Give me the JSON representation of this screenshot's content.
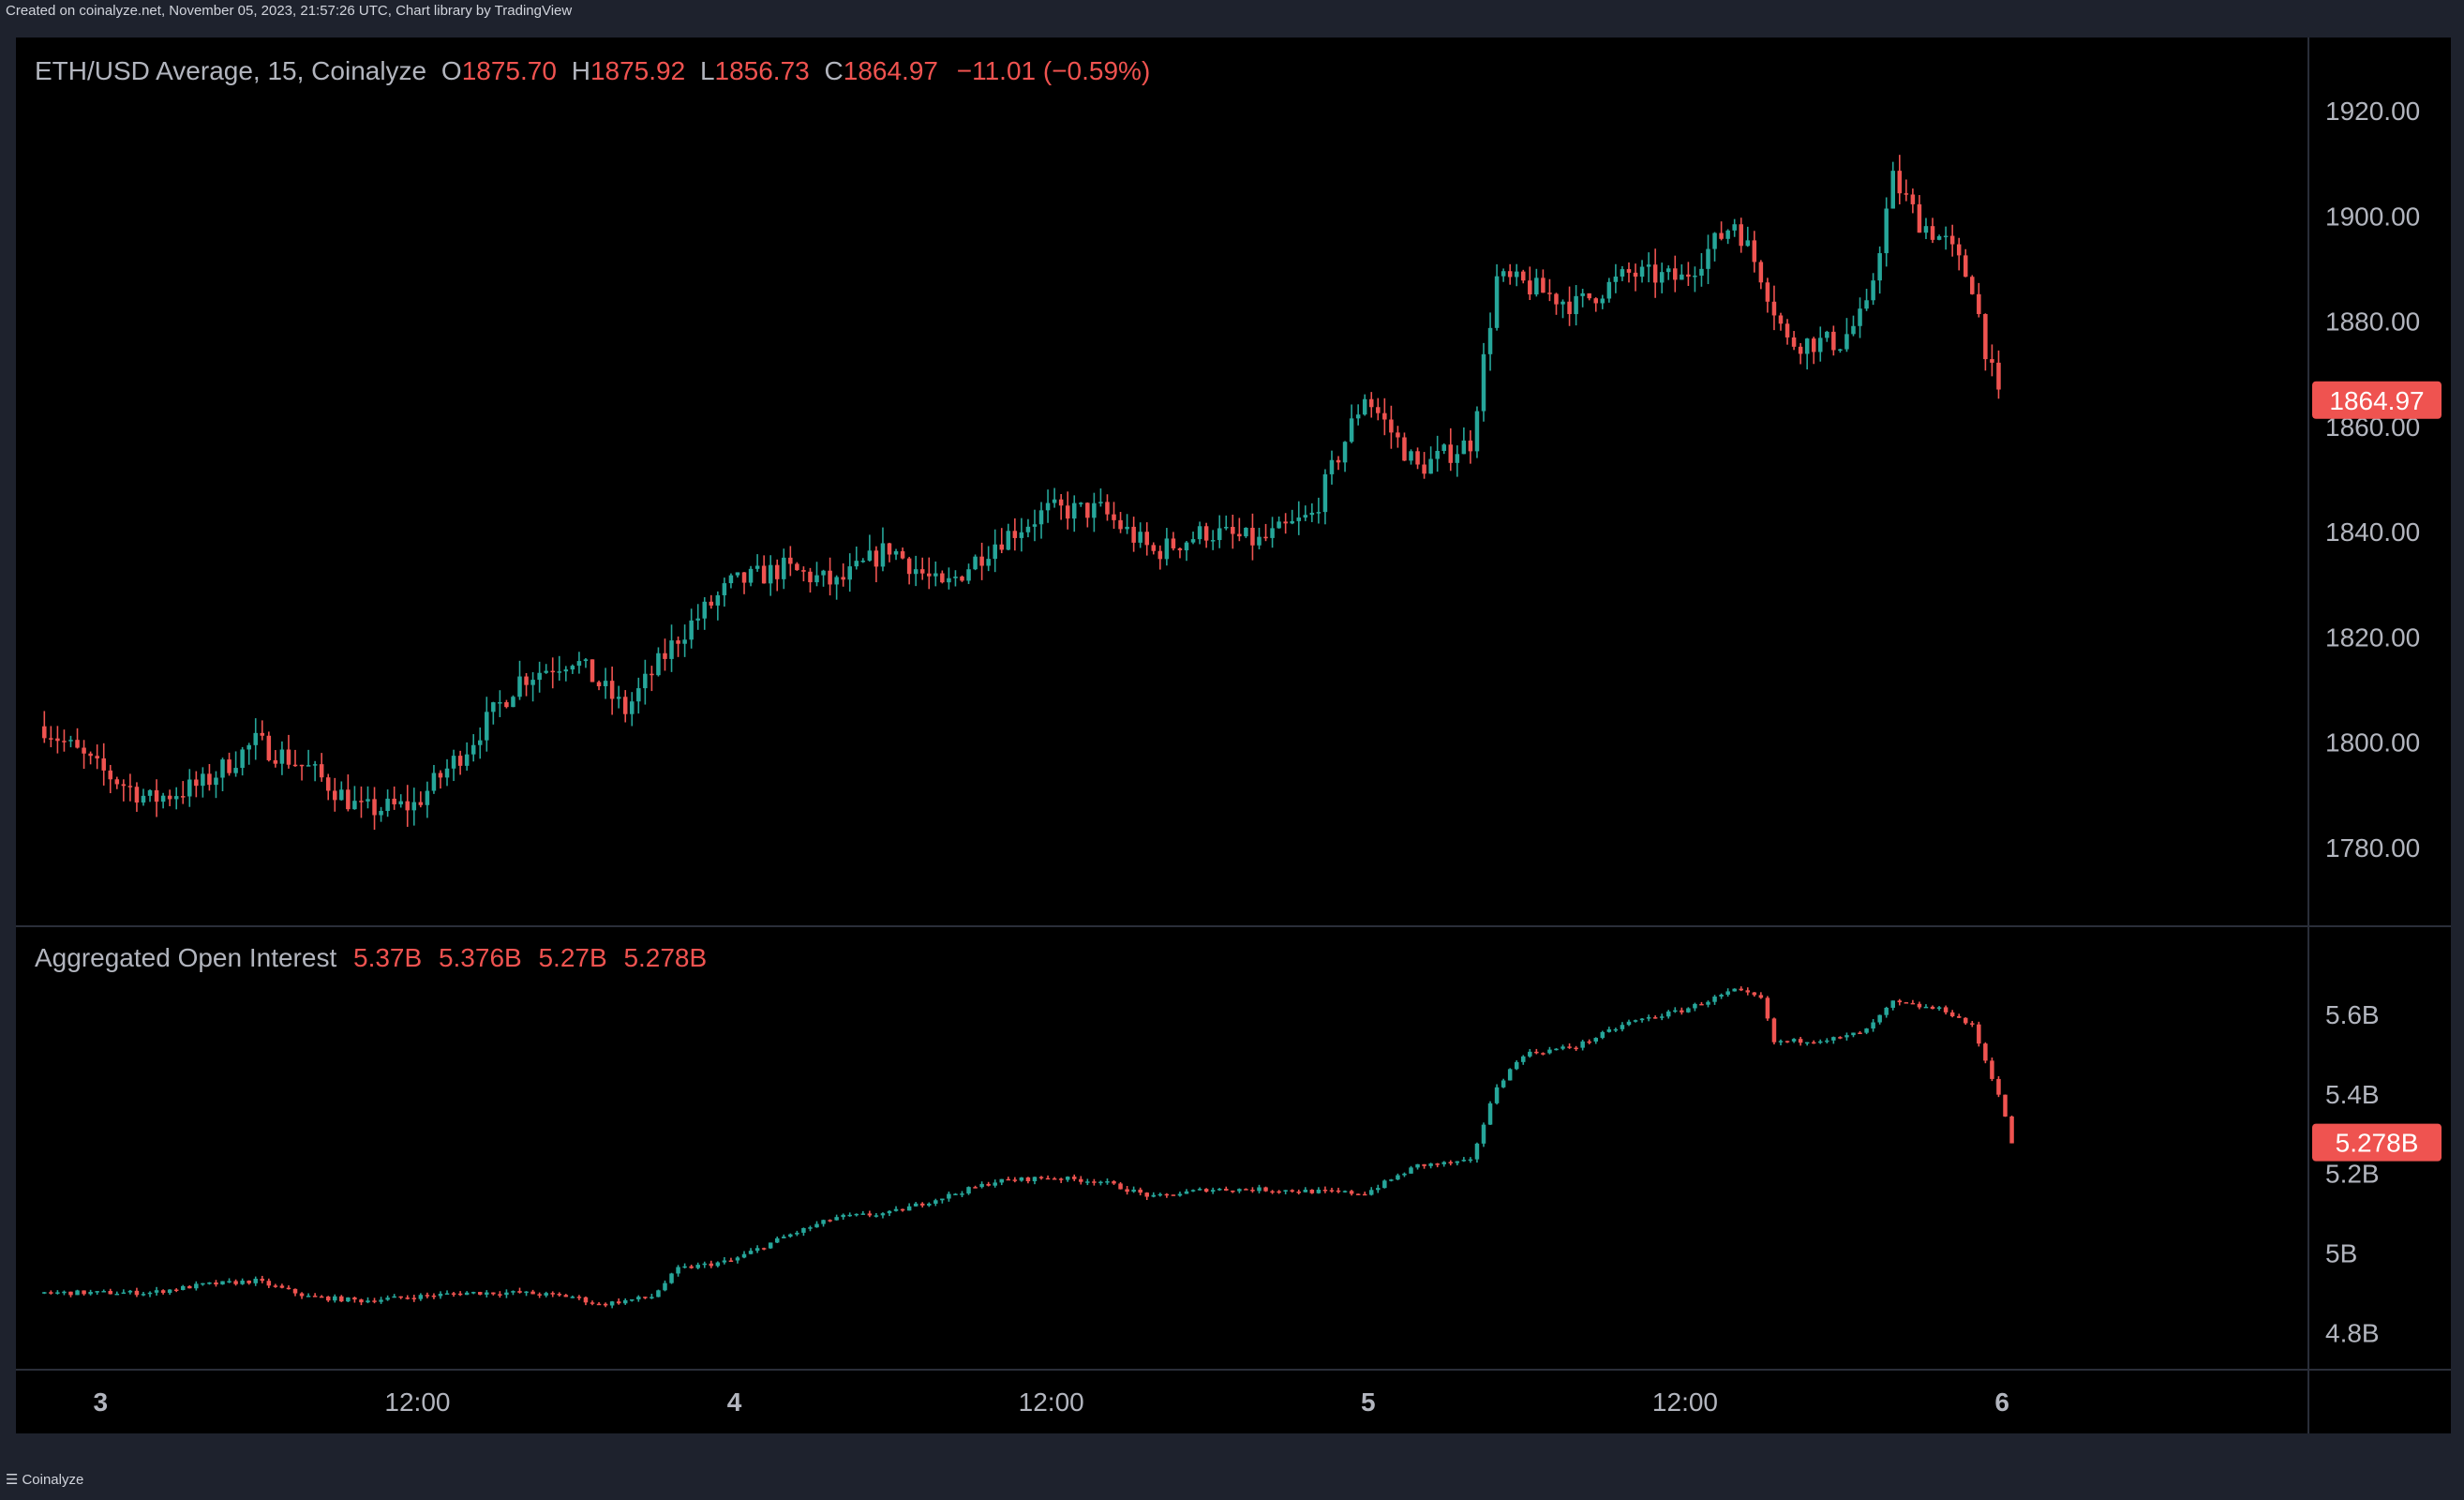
{
  "header_text": "Created on coinalyze.net, November 05, 2023, 21:57:26 UTC, Chart library by TradingView",
  "footer": {
    "label": "Coinalyze",
    "icon": "menu-icon"
  },
  "colors": {
    "up": "#26a69a",
    "down": "#ef5350",
    "background": "#000000",
    "text": "#b2b5be",
    "grid_line": "#2a2e39"
  },
  "price_legend": {
    "symbol": "ETH/USD Average, 15, Coinalyze",
    "o_label": "O",
    "o_value": "1875.70",
    "h_label": "H",
    "h_value": "1875.92",
    "l_label": "L",
    "l_value": "1856.73",
    "c_label": "C",
    "c_value": "1864.97",
    "change": "−11.01 (−0.59%)"
  },
  "oi_legend": {
    "title": "Aggregated Open Interest",
    "o_value": "5.37B",
    "h_value": "5.376B",
    "l_value": "5.27B",
    "c_value": "5.278B"
  },
  "chart_data": [
    {
      "type": "candlestick",
      "title": "ETH/USD Average, 15, Coinalyze",
      "interval": "15",
      "ylim": [
        1765,
        1925
      ],
      "y_ticks": [
        "1920.00",
        "1900.00",
        "1880.00",
        "1860.00",
        "1840.00",
        "1820.00",
        "1800.00",
        "1780.00"
      ],
      "last_price_label": "1864.97",
      "x_ticks": [
        "3",
        "12:00",
        "4",
        "12:00",
        "5",
        "12:00",
        "6"
      ],
      "anchor_series": [
        {
          "t": 0,
          "v": 1803
        },
        {
          "t": 4,
          "v": 1795
        },
        {
          "t": 8,
          "v": 1789
        },
        {
          "t": 12,
          "v": 1792
        },
        {
          "t": 16,
          "v": 1800
        },
        {
          "t": 20,
          "v": 1795
        },
        {
          "t": 24,
          "v": 1787
        },
        {
          "t": 28,
          "v": 1788
        },
        {
          "t": 32,
          "v": 1799
        },
        {
          "t": 36,
          "v": 1812
        },
        {
          "t": 40,
          "v": 1816
        },
        {
          "t": 44,
          "v": 1806
        },
        {
          "t": 48,
          "v": 1820
        },
        {
          "t": 52,
          "v": 1830
        },
        {
          "t": 56,
          "v": 1833
        },
        {
          "t": 60,
          "v": 1830
        },
        {
          "t": 64,
          "v": 1837
        },
        {
          "t": 68,
          "v": 1829
        },
        {
          "t": 72,
          "v": 1838
        },
        {
          "t": 76,
          "v": 1844
        },
        {
          "t": 80,
          "v": 1844
        },
        {
          "t": 84,
          "v": 1836
        },
        {
          "t": 88,
          "v": 1840
        },
        {
          "t": 92,
          "v": 1838
        },
        {
          "t": 96,
          "v": 1843
        },
        {
          "t": 100,
          "v": 1866
        },
        {
          "t": 104,
          "v": 1852
        },
        {
          "t": 108,
          "v": 1857
        },
        {
          "t": 110,
          "v": 1888
        },
        {
          "t": 112,
          "v": 1887
        },
        {
          "t": 116,
          "v": 1883
        },
        {
          "t": 120,
          "v": 1889
        },
        {
          "t": 124,
          "v": 1888
        },
        {
          "t": 128,
          "v": 1899
        },
        {
          "t": 130,
          "v": 1889
        },
        {
          "t": 132,
          "v": 1876
        },
        {
          "t": 136,
          "v": 1876
        },
        {
          "t": 138,
          "v": 1882
        },
        {
          "t": 140,
          "v": 1907
        },
        {
          "t": 142,
          "v": 1899
        },
        {
          "t": 144,
          "v": 1895
        },
        {
          "t": 146,
          "v": 1887
        },
        {
          "t": 147,
          "v": 1875
        },
        {
          "t": 148,
          "v": 1865
        }
      ]
    },
    {
      "type": "candlestick",
      "title": "Aggregated Open Interest",
      "ylim": [
        4.73,
        5.77
      ],
      "y_ticks": [
        "5.6B",
        "5.4B",
        "5.2B",
        "5B",
        "4.8B"
      ],
      "last_value_label": "5.278B",
      "anchor_series": [
        {
          "t": 0,
          "v": 4.9
        },
        {
          "t": 8,
          "v": 4.9
        },
        {
          "t": 12,
          "v": 4.92
        },
        {
          "t": 16,
          "v": 4.93
        },
        {
          "t": 20,
          "v": 4.89
        },
        {
          "t": 24,
          "v": 4.88
        },
        {
          "t": 28,
          "v": 4.89
        },
        {
          "t": 32,
          "v": 4.9
        },
        {
          "t": 36,
          "v": 4.9
        },
        {
          "t": 40,
          "v": 4.89
        },
        {
          "t": 42,
          "v": 4.87
        },
        {
          "t": 46,
          "v": 4.89
        },
        {
          "t": 48,
          "v": 4.96
        },
        {
          "t": 52,
          "v": 4.98
        },
        {
          "t": 56,
          "v": 5.04
        },
        {
          "t": 60,
          "v": 5.09
        },
        {
          "t": 64,
          "v": 5.1
        },
        {
          "t": 68,
          "v": 5.14
        },
        {
          "t": 72,
          "v": 5.18
        },
        {
          "t": 76,
          "v": 5.19
        },
        {
          "t": 80,
          "v": 5.18
        },
        {
          "t": 84,
          "v": 5.14
        },
        {
          "t": 88,
          "v": 5.16
        },
        {
          "t": 92,
          "v": 5.16
        },
        {
          "t": 100,
          "v": 5.15
        },
        {
          "t": 104,
          "v": 5.22
        },
        {
          "t": 108,
          "v": 5.23
        },
        {
          "t": 110,
          "v": 5.42
        },
        {
          "t": 112,
          "v": 5.5
        },
        {
          "t": 116,
          "v": 5.52
        },
        {
          "t": 120,
          "v": 5.58
        },
        {
          "t": 124,
          "v": 5.61
        },
        {
          "t": 128,
          "v": 5.66
        },
        {
          "t": 130,
          "v": 5.64
        },
        {
          "t": 131,
          "v": 5.53
        },
        {
          "t": 136,
          "v": 5.54
        },
        {
          "t": 138,
          "v": 5.56
        },
        {
          "t": 140,
          "v": 5.63
        },
        {
          "t": 144,
          "v": 5.61
        },
        {
          "t": 146,
          "v": 5.57
        },
        {
          "t": 148,
          "v": 5.4
        },
        {
          "t": 149,
          "v": 5.278
        }
      ]
    }
  ]
}
